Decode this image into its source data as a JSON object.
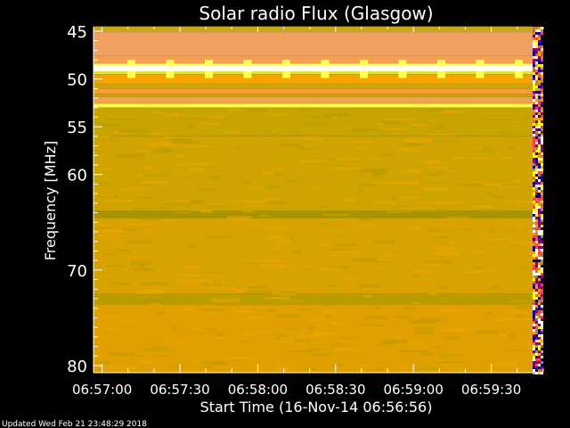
{
  "chart_data": {
    "type": "heatmap",
    "title": "Solar radio Flux (Glasgow)",
    "xlabel": "Start Time (16-Nov-14 06:56:56)",
    "ylabel": "Frequency [MHz]",
    "x_start_seconds_after_0656": 56,
    "x_range_time": [
      "06:56:56",
      "06:59:50"
    ],
    "y_range": [
      44.5,
      80.7
    ],
    "y_inverted": true,
    "x_tick_labels": [
      "06:57:00",
      "06:57:30",
      "06:58:00",
      "06:58:30",
      "06:59:00",
      "06:59:30"
    ],
    "y_tick_labels": [
      "45",
      "50",
      "55",
      "60",
      "70",
      "80"
    ],
    "y_ticks": [
      45,
      50,
      55,
      60,
      70,
      80
    ],
    "bands": [
      {
        "from": 44.5,
        "to": 45.1,
        "color": "#c8a818"
      },
      {
        "from": 45.1,
        "to": 47.6,
        "color": "#f0a060"
      },
      {
        "from": 47.6,
        "to": 48.4,
        "color": "#f4a050"
      },
      {
        "from": 48.4,
        "to": 48.6,
        "color": "#ffff60"
      },
      {
        "from": 48.6,
        "to": 49.2,
        "color": "#fffff0"
      },
      {
        "from": 49.2,
        "to": 49.5,
        "color": "#e0e040"
      },
      {
        "from": 49.5,
        "to": 50.5,
        "color": "#f8a400"
      },
      {
        "from": 50.5,
        "to": 51.0,
        "color": "#d0a010"
      },
      {
        "from": 51.0,
        "to": 51.6,
        "color": "#f4a030"
      },
      {
        "from": 51.6,
        "to": 51.9,
        "color": "#c8a010"
      },
      {
        "from": 51.9,
        "to": 52.6,
        "color": "#f0a050"
      },
      {
        "from": 52.6,
        "to": 53.0,
        "color": "#ffff40"
      },
      {
        "from": 53.0,
        "to": 56.0,
        "color": "#c8a400"
      },
      {
        "from": 56.0,
        "to": 63.8,
        "color": "#d0a400"
      },
      {
        "from": 63.8,
        "to": 64.6,
        "color": "#a89400"
      },
      {
        "from": 64.6,
        "to": 72.5,
        "color": "#d8a200"
      },
      {
        "from": 72.5,
        "to": 73.6,
        "color": "#b89c00"
      },
      {
        "from": 73.6,
        "to": 80.7,
        "color": "#e0a000"
      }
    ],
    "footer": "Updated Wed Feb 21 23:48:29 2018"
  }
}
